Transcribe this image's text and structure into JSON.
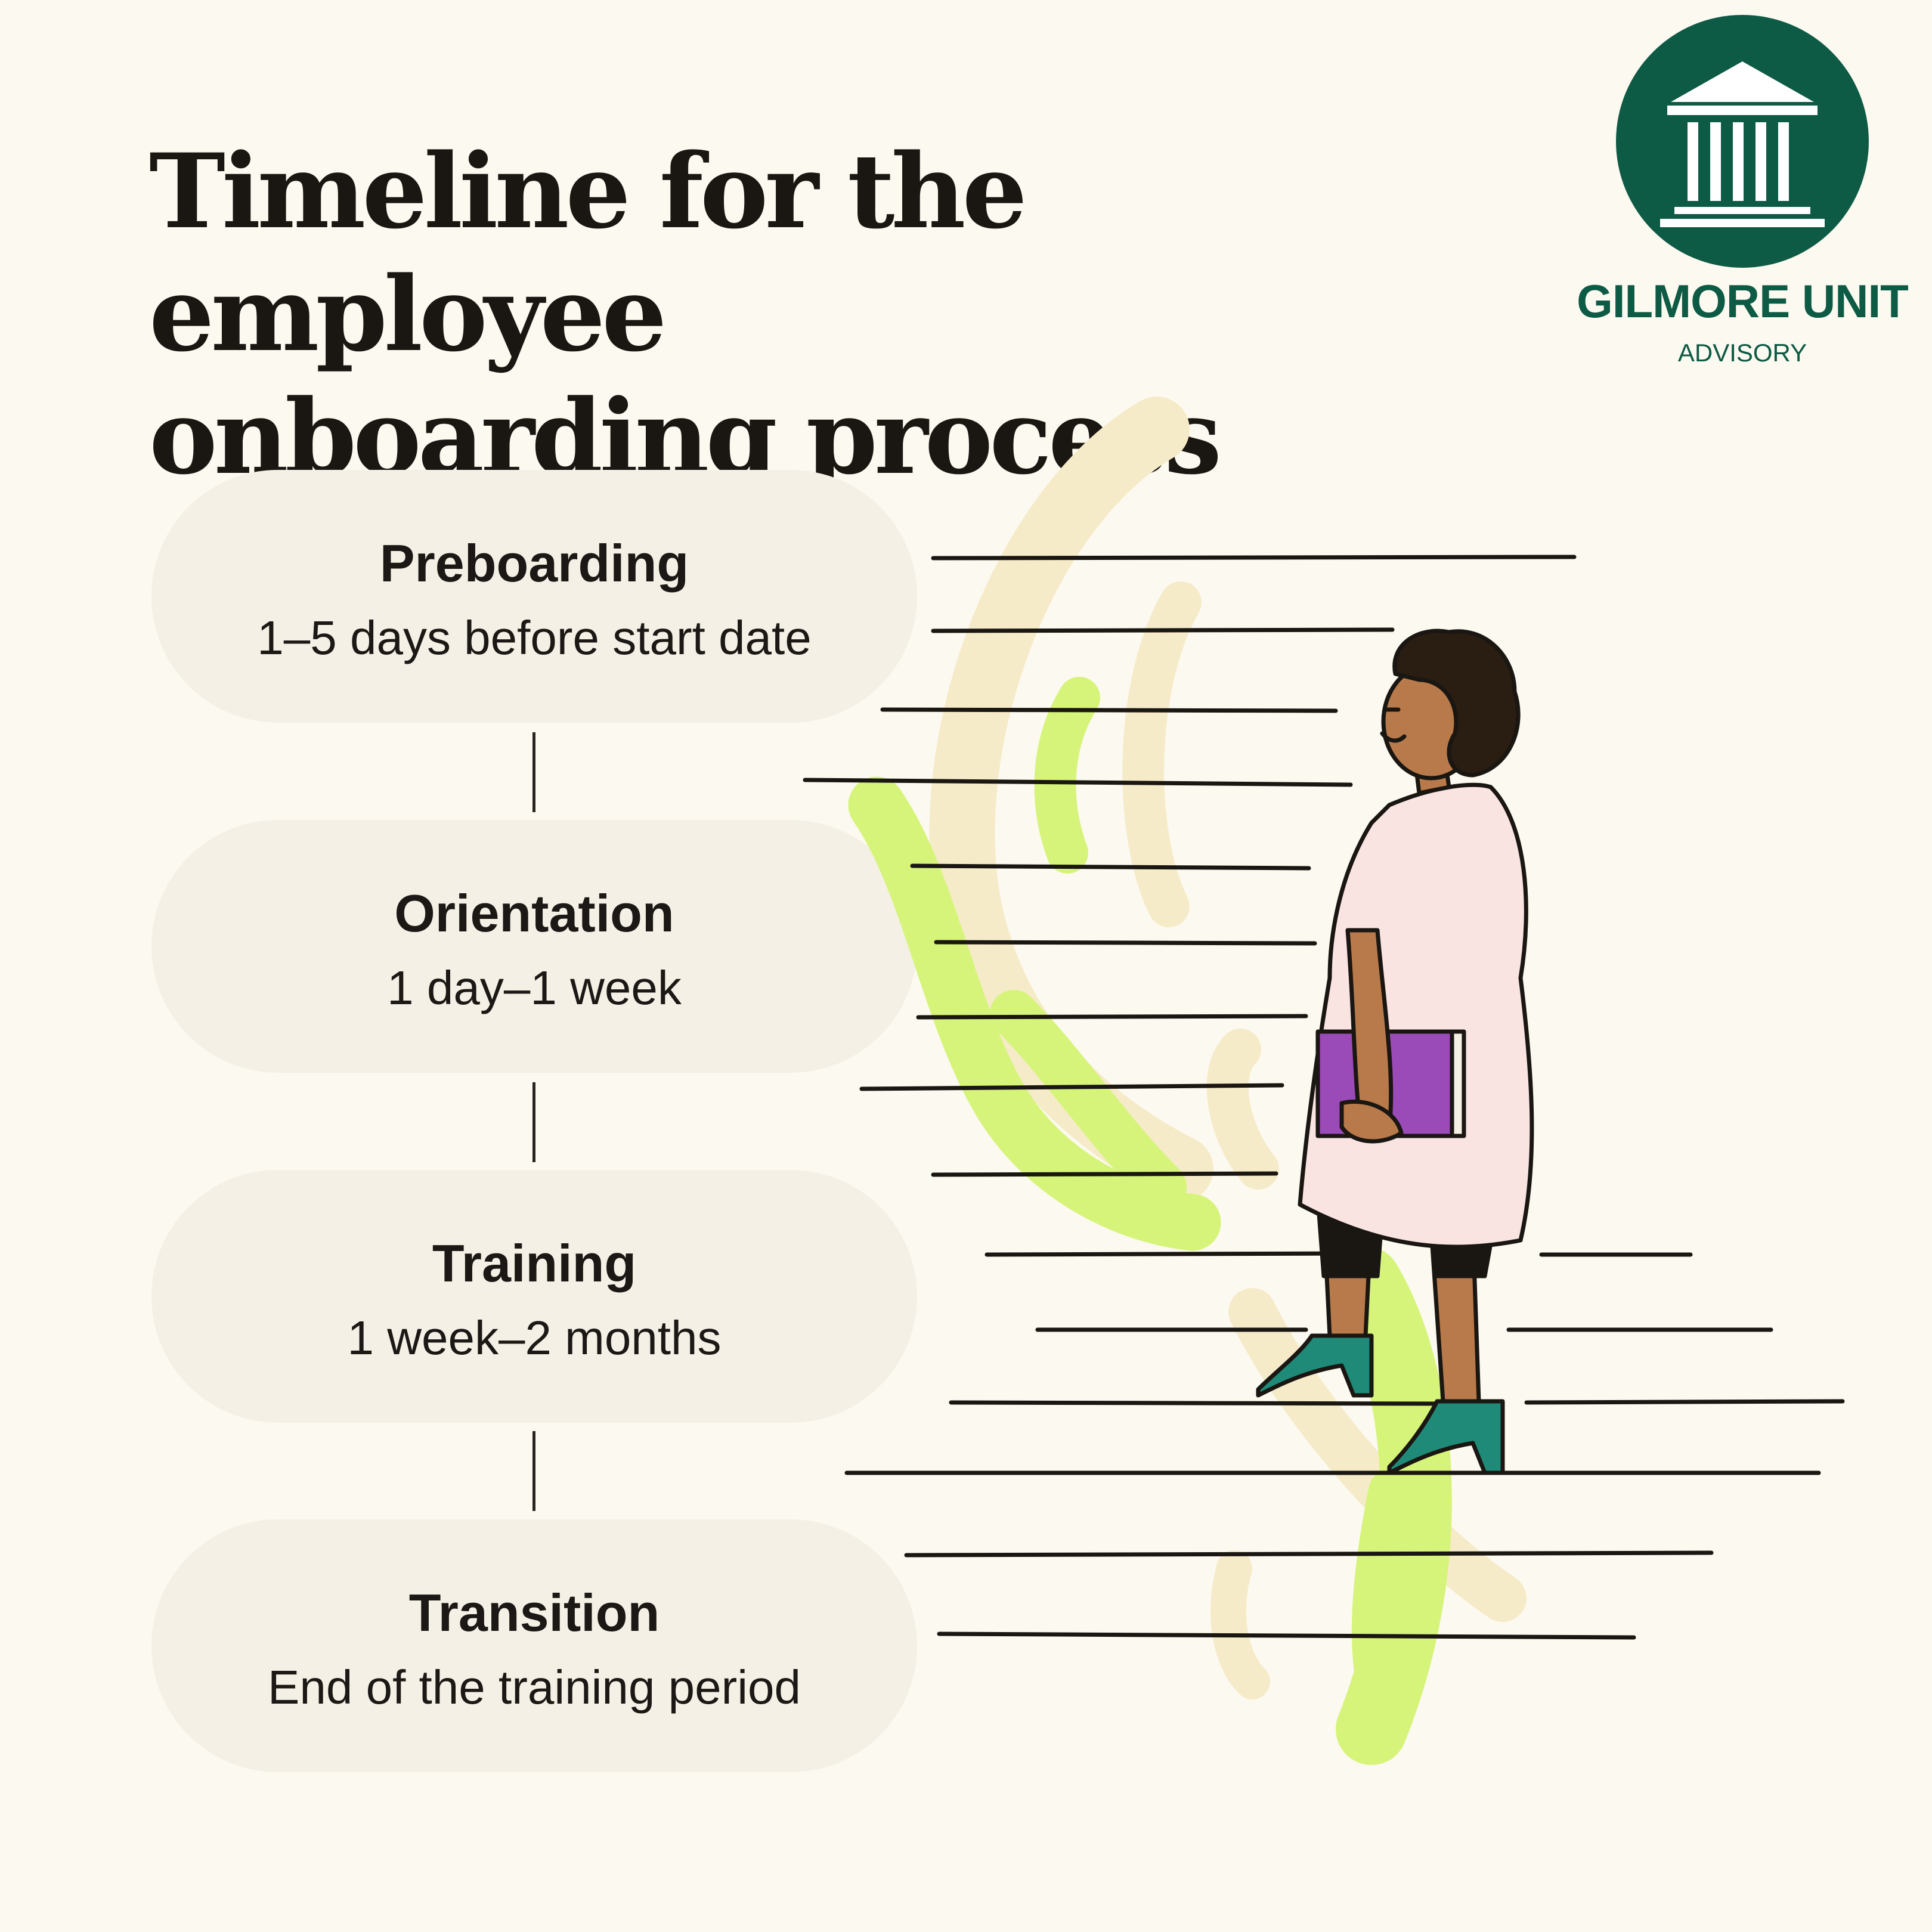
{
  "title": {
    "line1": "Timeline for the employee",
    "line2": "onboarding process"
  },
  "brand": {
    "name": "GILMORE UNIT",
    "tagline": "ADVISORY",
    "icon": "building-columns-icon",
    "color": "#0d5a45"
  },
  "stages": [
    {
      "label": "Preboarding",
      "duration": "1–5 days before start date"
    },
    {
      "label": "Orientation",
      "duration": "1 day–1 week"
    },
    {
      "label": "Training",
      "duration": "1 week–2 months"
    },
    {
      "label": "Transition",
      "duration": "End of the training period"
    }
  ],
  "colors": {
    "background": "#fcf9f0",
    "pill": "#f4f0e5",
    "accent_green": "#d6f47a",
    "accent_cream": "#f6ebc9",
    "shoe": "#1f8a78",
    "book": "#9b4bb7",
    "dress": "#f9e4e2"
  }
}
